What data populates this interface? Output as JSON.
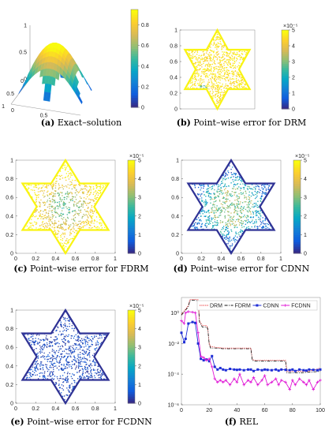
{
  "captions": [
    {
      "letter": "(a)",
      "text": "Exact–solution"
    },
    {
      "letter": "(b)",
      "text": "Point–wise error for DRM"
    },
    {
      "letter": "(c)",
      "text": "Point–wise error for FDRM"
    },
    {
      "letter": "(d)",
      "text": "Point–wise error for CDNN"
    },
    {
      "letter": "(e)",
      "text": "Point–wise error for FCDNN"
    },
    {
      "letter": "(f)",
      "text": "REL"
    }
  ],
  "colors": {
    "low": "#352a87",
    "mid": "#21b0a5",
    "high": "#f9fb0e"
  },
  "chart_data": [
    {
      "type": "surface",
      "zticks": [
        "0",
        "0.5",
        "1"
      ],
      "xticks": [
        "0",
        "0.5"
      ],
      "yticks": [
        "0",
        "0.5",
        "1"
      ],
      "colorbar": {
        "ticks": [
          "0",
          "0.2",
          "0.4",
          "0.6",
          "0.8"
        ],
        "range": [
          0,
          0.95
        ]
      }
    },
    {
      "type": "scatter",
      "yticks": [
        "0",
        "0.2",
        "0.4",
        "0.6",
        "0.8",
        "1"
      ],
      "colorbar": {
        "ticks": [
          "0",
          "1",
          "2",
          "3",
          "4",
          "5"
        ],
        "exponent": "×10⁻⁵",
        "range": [
          0,
          5
        ]
      },
      "pattern": "high_error_everywhere"
    },
    {
      "type": "scatter",
      "xticks": [
        "0",
        "0.2",
        "0.4",
        "0.6",
        "0.8",
        "1"
      ],
      "yticks": [
        "0",
        "0.2",
        "0.4",
        "0.6",
        "0.8",
        "1"
      ],
      "colorbar": {
        "ticks": [
          "0",
          "1",
          "2",
          "3",
          "4",
          "5"
        ],
        "exponent": "×10⁻⁵",
        "range": [
          0,
          5
        ]
      },
      "pattern": "high_boundary_mid_center"
    },
    {
      "type": "scatter",
      "xticks": [
        "0",
        "0.2",
        "0.4",
        "0.6",
        "0.8",
        "1"
      ],
      "yticks": [
        "0",
        "0.2",
        "0.4",
        "0.6",
        "0.8",
        "1"
      ],
      "colorbar": {
        "ticks": [
          "0",
          "1",
          "2",
          "3",
          "4",
          "5"
        ],
        "exponent": "×10⁻⁵",
        "range": [
          0,
          5
        ]
      },
      "pattern": "low_boundary_mid_ring"
    },
    {
      "type": "scatter",
      "xticks": [
        "0",
        "0.2",
        "0.4",
        "0.6",
        "0.8",
        "1"
      ],
      "yticks": [
        "0",
        "0.2",
        "0.4",
        "0.6",
        "0.8",
        "1"
      ],
      "colorbar": {
        "ticks": [
          "0",
          "1",
          "2",
          "3",
          "4",
          "5"
        ],
        "exponent": "×10⁻⁵",
        "range": [
          0,
          5
        ]
      },
      "pattern": "low_error_everywhere"
    },
    {
      "type": "line",
      "yscale": "log",
      "xlim": [
        0,
        100
      ],
      "ylim": [
        1e-06,
        10.0
      ],
      "xticks": [
        "0",
        "20",
        "40",
        "60",
        "80",
        "100"
      ],
      "ytick_values": [
        1e-06,
        0.0001,
        0.01,
        1.0
      ],
      "ytick_labels": [
        "10⁻⁶",
        "10⁻⁴",
        "10⁻²",
        "10⁰"
      ],
      "series": [
        {
          "name": "DRM",
          "color": "#e8191c",
          "style": "dotted",
          "x": [
            0,
            5,
            6,
            7,
            10,
            12,
            13,
            15,
            18,
            19,
            20,
            21,
            23,
            25,
            30,
            38,
            45,
            50,
            51,
            53,
            55,
            60,
            70,
            75,
            76,
            78,
            80,
            85,
            90,
            95,
            100
          ],
          "y": [
            0.8,
            3,
            7,
            7.5,
            7.5,
            7,
            0.3,
            0.15,
            0.15,
            0.1,
            0.01,
            0.006,
            0.006,
            0.0055,
            0.005,
            0.005,
            0.005,
            0.005,
            0.0009,
            0.0008,
            0.0008,
            0.0008,
            0.0008,
            0.0008,
            0.00015,
            0.00015,
            0.00015,
            0.00015,
            0.00015,
            0.00018,
            0.00025
          ]
        },
        {
          "name": "FDRM",
          "color": "#111111",
          "style": "dashdot",
          "x": [
            0,
            5,
            6,
            7,
            10,
            12,
            13,
            15,
            18,
            19,
            20,
            21,
            23,
            25,
            30,
            38,
            45,
            50,
            51,
            53,
            55,
            60,
            70,
            75,
            76,
            78,
            80,
            85,
            90,
            95,
            100
          ],
          "y": [
            0.7,
            2.5,
            6,
            6.5,
            6.5,
            6,
            0.25,
            0.12,
            0.12,
            0.09,
            0.009,
            0.005,
            0.005,
            0.005,
            0.0045,
            0.0045,
            0.0045,
            0.0045,
            0.0008,
            0.0007,
            0.0007,
            0.0007,
            0.0007,
            0.0007,
            0.00012,
            0.00012,
            0.00012,
            0.00012,
            0.00013,
            0.00014,
            0.00015
          ]
        },
        {
          "name": "CDNN",
          "color": "#1f2ed6",
          "style": "solid",
          "marker": "square",
          "x": [
            0,
            2,
            3,
            5,
            8,
            10,
            12,
            14,
            16,
            18,
            20,
            22,
            24,
            26,
            28,
            30,
            32,
            35,
            38,
            40,
            42,
            45,
            48,
            50,
            52,
            55,
            58,
            60,
            62,
            65,
            68,
            70,
            72,
            75,
            78,
            80,
            82,
            85,
            88,
            90,
            92,
            95,
            98,
            100
          ],
          "y": [
            0.05,
            0.012,
            0.02,
            0.2,
            0.25,
            0.22,
            0.01,
            0.001,
            0.0008,
            0.0009,
            0.0007,
            0.0015,
            0.0003,
            0.0002,
            0.00025,
            0.0002,
            0.00018,
            0.00022,
            0.0002,
            0.00019,
            0.0002,
            0.00018,
            0.0002,
            0.0002,
            0.00016,
            0.0002,
            0.00018,
            0.0002,
            0.00019,
            0.00018,
            0.0002,
            0.00017,
            0.0002,
            0.00019,
            0.00018,
            0.0002,
            0.00016,
            0.0002,
            0.00018,
            0.00017,
            0.0002,
            0.00019,
            0.00018,
            0.0002
          ]
        },
        {
          "name": "FCDNN",
          "color": "#e01ad6",
          "style": "solid",
          "marker": "star",
          "x": [
            0,
            2,
            3,
            5,
            8,
            10,
            12,
            14,
            16,
            18,
            20,
            22,
            24,
            26,
            28,
            30,
            32,
            35,
            38,
            40,
            42,
            45,
            48,
            50,
            52,
            55,
            58,
            60,
            62,
            65,
            68,
            70,
            72,
            75,
            78,
            80,
            82,
            85,
            88,
            90,
            92,
            95,
            98,
            100
          ],
          "y": [
            0.3,
            0.2,
            1,
            1.2,
            1.1,
            1.0,
            0.05,
            0.0015,
            0.0012,
            0.0008,
            0.001,
            0.0003,
            5e-05,
            3e-05,
            4e-05,
            3e-05,
            4e-05,
            2e-05,
            5e-05,
            3e-05,
            0.0001,
            2e-05,
            4e-05,
            3e-05,
            6e-05,
            2e-05,
            4e-05,
            8e-05,
            2e-05,
            3e-05,
            5e-05,
            2e-05,
            4e-05,
            3e-05,
            1e-05,
            4e-05,
            2e-05,
            5e-05,
            3e-05,
            2e-05,
            4e-05,
            1e-05,
            3e-05,
            4e-05
          ]
        }
      ]
    }
  ]
}
